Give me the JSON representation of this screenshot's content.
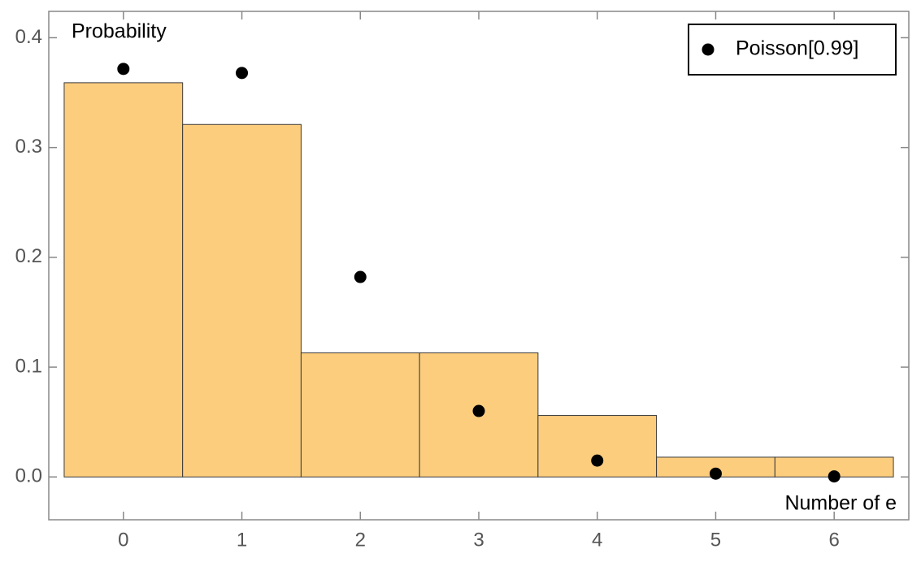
{
  "chart_data": {
    "type": "histogram",
    "bins": [
      -0.5,
      0.5,
      1.5,
      2.5,
      3.5,
      4.5,
      5.5,
      6.5
    ],
    "values": [
      0.359,
      0.321,
      0.113,
      0.113,
      0.056,
      0.018,
      0.018
    ],
    "color": "#fdcd7e",
    "series": [
      {
        "name": "Poisson[0.99]",
        "type": "scatter",
        "color": "#000000",
        "x": [
          0,
          1,
          2,
          3,
          4,
          5,
          6
        ],
        "values": [
          0.3716,
          0.3679,
          0.1821,
          0.0601,
          0.0149,
          0.003,
          0.0005
        ]
      }
    ],
    "y_label": "Probability",
    "x_label": "Number of e",
    "xlim": [
      -0.63,
      6.63
    ],
    "xticks": [
      0,
      1,
      2,
      3,
      4,
      5,
      6
    ],
    "ylim": [
      -0.039,
      0.424
    ],
    "yticks": [
      {
        "value": 0,
        "label": "0.0"
      },
      0.1,
      0.2,
      0.3,
      0.4
    ],
    "legend": "upper right"
  }
}
